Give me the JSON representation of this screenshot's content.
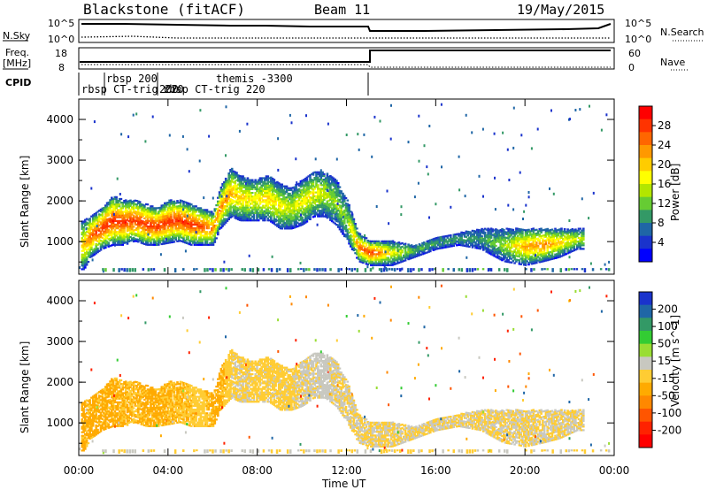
{
  "header": {
    "title": "Blackstone (fitACF)",
    "beam": "Beam 11",
    "date": "19/May/2015"
  },
  "summary_panel": {
    "nsky_label": "N.Sky",
    "nsearch_label": "N.Search",
    "freq_label": "Freq.",
    "freq_unit": "[MHz]",
    "nave_label": "Nave",
    "cpid_label": "CPID",
    "count_axis_ticks": [
      "10^5",
      "10^0"
    ],
    "freq_ticks": [
      "18",
      "8"
    ],
    "nave_ticks": [
      "60",
      "0"
    ]
  },
  "cpid_labels": [
    {
      "text": "rbsp 200"
    },
    {
      "text": "rbsp CT-trig 220"
    },
    {
      "text": "200"
    },
    {
      "text": "rbsp CT-trig 220"
    },
    {
      "text": "themis -3300"
    }
  ],
  "colorbars": {
    "power": {
      "label": "Power [dB]",
      "ticks": [
        "28",
        "24",
        "20",
        "16",
        "12",
        "8",
        "4"
      ],
      "colors": [
        "#ff0000",
        "#ff3300",
        "#ff6600",
        "#ff9900",
        "#ffcc00",
        "#ffff00",
        "#b3e600",
        "#66cc33",
        "#339966",
        "#1f66a6",
        "#1a33cc",
        "#0000ff"
      ]
    },
    "velocity": {
      "label": "Velocity [m s^-1]",
      "ticks": [
        "200",
        "100",
        "50",
        "15",
        "-15",
        "-50",
        "-100",
        "-200"
      ],
      "colors": [
        "#1a33cc",
        "#1f66a6",
        "#339966",
        "#33cc33",
        "#99dd33",
        "#c8c8c0",
        "#ffcc33",
        "#ffaa00",
        "#ff8800",
        "#ff5500",
        "#ff2200",
        "#ff0000"
      ]
    }
  },
  "chart_data": [
    {
      "type": "heatmap",
      "panel": "power",
      "ylabel": "Slant Range [km]",
      "yticks": [
        1000,
        2000,
        3000,
        4000
      ],
      "ylim": [
        200,
        4500
      ],
      "xlim": [
        "00:00",
        "24:00"
      ],
      "scatter_band": {
        "x_hours": [
          0.2,
          0.5,
          1.0,
          1.5,
          2.0,
          2.5,
          3.0,
          3.5,
          4.0,
          4.5,
          5.0,
          5.5,
          6.0,
          6.3,
          6.8,
          7.2,
          7.8,
          8.5,
          9.0,
          9.5,
          10.0,
          10.5,
          11.0,
          11.5,
          12.0,
          12.5,
          13.0,
          13.5,
          14.0,
          15.0,
          16.0,
          17.0,
          18.0,
          19.0,
          20.0,
          20.8,
          21.5,
          22.3
        ],
        "range_low_km": [
          300,
          600,
          800,
          900,
          900,
          1000,
          900,
          900,
          950,
          1000,
          900,
          900,
          900,
          1300,
          1600,
          1500,
          1500,
          1500,
          1300,
          1300,
          1400,
          1600,
          1600,
          1400,
          1000,
          500,
          400,
          400,
          400,
          600,
          800,
          900,
          800,
          500,
          400,
          500,
          600,
          800
        ],
        "range_high_km": [
          1500,
          1600,
          1800,
          2100,
          2000,
          2000,
          1900,
          1800,
          2000,
          2000,
          1900,
          1800,
          1700,
          2300,
          2800,
          2600,
          2500,
          2600,
          2400,
          2300,
          2500,
          2700,
          2700,
          2500,
          2000,
          1200,
          1000,
          1000,
          1000,
          900,
          1100,
          1200,
          1300,
          1300,
          1300,
          1300,
          1300,
          1300
        ],
        "peak_power_db": [
          20,
          26,
          28,
          28,
          28,
          28,
          28,
          28,
          28,
          28,
          28,
          26,
          24,
          24,
          22,
          20,
          18,
          20,
          18,
          16,
          18,
          18,
          16,
          14,
          14,
          24,
          28,
          24,
          18,
          12,
          10,
          10,
          10,
          14,
          22,
          24,
          20,
          16
        ]
      }
    },
    {
      "type": "heatmap",
      "panel": "velocity",
      "ylabel": "Slant Range [km]",
      "xlabel": "Time UT",
      "xticks": [
        "00:00",
        "04:00",
        "08:00",
        "12:00",
        "16:00",
        "20:00",
        "00:00"
      ],
      "yticks": [
        1000,
        2000,
        3000,
        4000
      ],
      "ylim": [
        200,
        4500
      ],
      "xlim": [
        "00:00",
        "24:00"
      ],
      "scatter_band": {
        "x_hours": [
          0.2,
          0.5,
          1.0,
          1.5,
          2.0,
          2.5,
          3.0,
          3.5,
          4.0,
          4.5,
          5.0,
          5.5,
          6.0,
          6.3,
          6.8,
          7.2,
          7.8,
          8.5,
          9.0,
          9.5,
          10.0,
          10.5,
          11.0,
          11.5,
          12.0,
          12.5,
          13.0,
          13.5,
          14.0,
          15.0,
          16.0,
          17.0,
          18.0,
          19.0,
          20.0,
          20.8,
          21.5,
          22.3
        ],
        "range_low_km": [
          300,
          600,
          800,
          900,
          900,
          1000,
          900,
          900,
          950,
          1000,
          900,
          900,
          900,
          1300,
          1600,
          1500,
          1500,
          1500,
          1300,
          1300,
          1400,
          1600,
          1600,
          1400,
          1000,
          500,
          400,
          400,
          400,
          600,
          800,
          900,
          800,
          500,
          400,
          500,
          600,
          800
        ],
        "range_high_km": [
          1500,
          1600,
          1800,
          2100,
          2000,
          2000,
          1900,
          1800,
          2000,
          2000,
          1900,
          1800,
          1700,
          2300,
          2800,
          2600,
          2500,
          2600,
          2400,
          2300,
          2500,
          2700,
          2700,
          2500,
          2000,
          1200,
          1000,
          1000,
          1000,
          900,
          1100,
          1200,
          1300,
          1300,
          1300,
          1300,
          1300,
          1300
        ],
        "velocity_ms": [
          -50,
          -50,
          -50,
          -50,
          -40,
          -40,
          -50,
          -50,
          -40,
          -40,
          -30,
          -20,
          -50,
          -50,
          -10,
          0,
          -10,
          -10,
          -10,
          -10,
          5,
          5,
          20,
          0,
          0,
          0,
          0,
          0,
          0,
          0,
          0,
          0,
          0,
          0,
          0,
          0,
          0,
          0
        ]
      }
    }
  ]
}
